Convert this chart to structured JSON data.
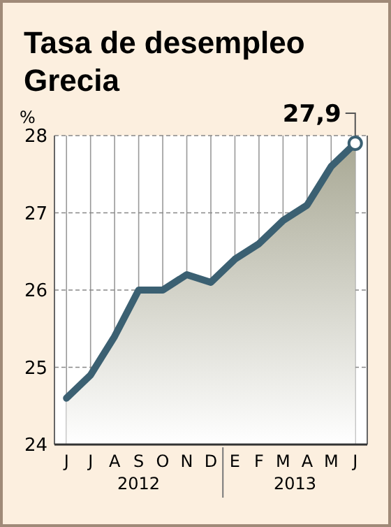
{
  "chart_data": {
    "type": "area",
    "title": "Tasa de desempleo Grecia",
    "ylabel": "%",
    "categories": [
      "J",
      "J",
      "A",
      "S",
      "O",
      "N",
      "D",
      "E",
      "F",
      "M",
      "A",
      "M",
      "J"
    ],
    "series": [
      {
        "color": "#3b6072",
        "values": [
          24.6,
          24.9,
          25.4,
          26.0,
          26.0,
          26.2,
          26.1,
          26.4,
          26.6,
          26.9,
          27.1,
          27.6,
          27.9
        ]
      }
    ],
    "ylim": [
      24,
      28
    ],
    "yticks": [
      24,
      25,
      26,
      27,
      28
    ],
    "grid": true,
    "annotations": [
      "27,9",
      "2012",
      "2013"
    ]
  }
}
